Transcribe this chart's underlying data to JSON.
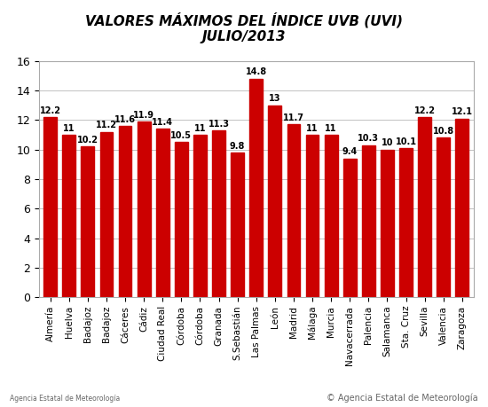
{
  "title_line1": "VALORES MÁXIMOS DEL ÍNDICE UVB (UVI)",
  "title_line2": "JULIO/2013",
  "labels": [
    "Almería",
    "Huelva",
    "Badajoz",
    "Badajoz",
    "Cáceres",
    "Cádiz",
    "Ciudad Real",
    "Córdoba",
    "Córdoba",
    "Granada",
    "S.Sebastián",
    "Las Palmas",
    "León",
    "Madrid",
    "Málaga",
    "Murcia",
    "Navacerrada",
    "Palencia",
    "Salamanca",
    "Sta. Cruz",
    "Sevilla",
    "Valencia",
    "Zaragoza"
  ],
  "values": [
    12.2,
    11.0,
    10.2,
    11.2,
    11.6,
    11.9,
    11.4,
    10.5,
    11.0,
    11.3,
    9.8,
    14.8,
    13.0,
    11.7,
    11.0,
    11.0,
    9.4,
    10.3,
    10.0,
    10.1,
    12.2,
    10.8,
    12.1
  ],
  "bar_color": "#cc0000",
  "background_color": "#ffffff",
  "grid_color": "#aaaaaa",
  "ylim": [
    0,
    16
  ],
  "yticks": [
    0,
    2,
    4,
    6,
    8,
    10,
    12,
    14,
    16
  ],
  "title_fontsize": 11,
  "label_fontsize": 7.5,
  "value_fontsize": 7,
  "copyright_text": "© Agencia Estatal de Meteorología",
  "aemet_text": "Agencia Estatal de Meteorología"
}
